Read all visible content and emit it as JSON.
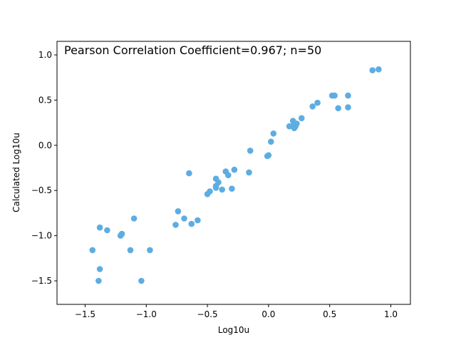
{
  "chart_data": {
    "type": "scatter",
    "title": "",
    "annotation": "Pearson Correlation Coefficient=0.967; n=50",
    "xlabel": "Log10u",
    "ylabel": "Calculated Log10u",
    "xlim": [
      -1.73,
      1.16
    ],
    "ylim": [
      -1.76,
      1.15
    ],
    "xticks": [
      -1.5,
      -1.0,
      -0.5,
      0.0,
      0.5,
      1.0
    ],
    "xtick_labels": [
      "−1.5",
      "−1.0",
      "−0.5",
      "0.0",
      "0.5",
      "1.0"
    ],
    "yticks": [
      -1.5,
      -1.0,
      -0.5,
      0.0,
      0.5,
      1.0
    ],
    "ytick_labels": [
      "−1.5",
      "−1.0",
      "−0.5",
      "0.0",
      "0.5",
      "1.0"
    ],
    "grid": false,
    "point_color": "#5dade2",
    "points": [
      [
        -1.44,
        -1.16
      ],
      [
        -1.39,
        -1.5
      ],
      [
        -1.38,
        -0.91
      ],
      [
        -1.38,
        -1.37
      ],
      [
        -1.32,
        -0.94
      ],
      [
        -1.21,
        -1.0
      ],
      [
        -1.2,
        -0.98
      ],
      [
        -1.13,
        -1.16
      ],
      [
        -1.1,
        -0.81
      ],
      [
        -1.04,
        -1.5
      ],
      [
        -0.97,
        -1.16
      ],
      [
        -0.76,
        -0.88
      ],
      [
        -0.74,
        -0.73
      ],
      [
        -0.69,
        -0.81
      ],
      [
        -0.65,
        -0.31
      ],
      [
        -0.63,
        -0.87
      ],
      [
        -0.58,
        -0.83
      ],
      [
        -0.5,
        -0.54
      ],
      [
        -0.48,
        -0.51
      ],
      [
        -0.43,
        -0.47
      ],
      [
        -0.43,
        -0.45
      ],
      [
        -0.43,
        -0.37
      ],
      [
        -0.41,
        -0.41
      ],
      [
        -0.38,
        -0.49
      ],
      [
        -0.35,
        -0.29
      ],
      [
        -0.33,
        -0.33
      ],
      [
        -0.3,
        -0.48
      ],
      [
        -0.28,
        -0.27
      ],
      [
        -0.16,
        -0.3
      ],
      [
        -0.15,
        -0.06
      ],
      [
        -0.01,
        -0.12
      ],
      [
        0.0,
        -0.11
      ],
      [
        0.02,
        0.04
      ],
      [
        0.04,
        0.13
      ],
      [
        0.17,
        0.21
      ],
      [
        0.2,
        0.27
      ],
      [
        0.21,
        0.19
      ],
      [
        0.21,
        0.24
      ],
      [
        0.22,
        0.21
      ],
      [
        0.23,
        0.24
      ],
      [
        0.27,
        0.3
      ],
      [
        0.36,
        0.43
      ],
      [
        0.4,
        0.47
      ],
      [
        0.52,
        0.55
      ],
      [
        0.54,
        0.55
      ],
      [
        0.57,
        0.41
      ],
      [
        0.65,
        0.42
      ],
      [
        0.65,
        0.55
      ],
      [
        0.85,
        0.83
      ],
      [
        0.9,
        0.84
      ]
    ]
  }
}
